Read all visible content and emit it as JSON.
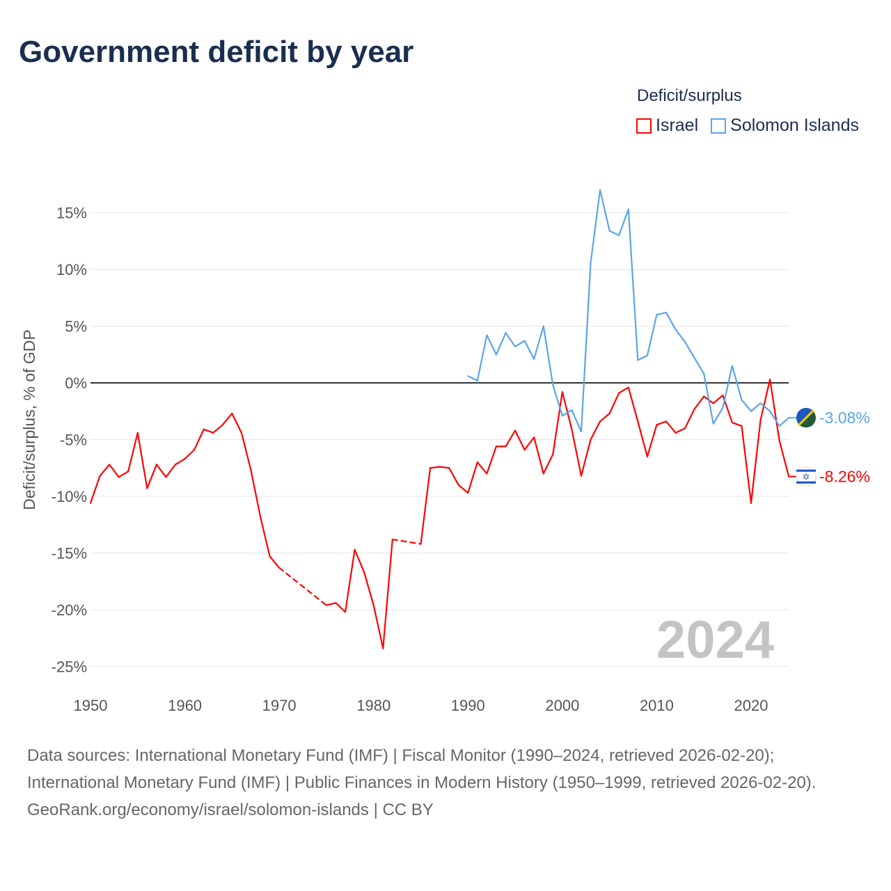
{
  "title": "Government deficit by year",
  "legend": {
    "title": "Deficit/surplus",
    "items": [
      {
        "label": "Israel",
        "color": "#ff0000"
      },
      {
        "label": "Solomon Islands",
        "color": "#5aa5e8"
      }
    ]
  },
  "year_watermark": "2024",
  "footer": {
    "sources": "Data sources: International Monetary Fund (IMF) | Fiscal Monitor (1990–2024, retrieved 2026-02-20); International Monetary Fund (IMF) | Public Finances in Modern History (1950–1999, retrieved 2026-02-20).",
    "credit": "GeoRank.org/economy/israel/solomon-islands | CC BY"
  },
  "chart_data": {
    "type": "line",
    "title": "Government deficit by year",
    "xlabel": "",
    "ylabel": "Deficit/surplus, % of GDP",
    "xlim": [
      1950,
      2024
    ],
    "ylim": [
      -25,
      17
    ],
    "x_ticks": [
      1950,
      1960,
      1970,
      1980,
      1990,
      2000,
      2010,
      2020
    ],
    "y_ticks": [
      15,
      10,
      5,
      0,
      -5,
      -10,
      -15,
      -20,
      -25
    ],
    "y_tick_labels": [
      "15%",
      "10%",
      "5%",
      "0%",
      "-5%",
      "-10%",
      "-15%",
      "-20%",
      "-25%"
    ],
    "grid": true,
    "legend_position": "top-right",
    "series": [
      {
        "name": "Israel",
        "color": "#ff0000",
        "end_label": "-8.26%",
        "x": [
          1950,
          1951,
          1952,
          1953,
          1954,
          1955,
          1956,
          1957,
          1958,
          1959,
          1960,
          1961,
          1962,
          1963,
          1964,
          1965,
          1966,
          1967,
          1968,
          1969,
          1970,
          1975,
          1976,
          1977,
          1978,
          1979,
          1980,
          1981,
          1982,
          1985,
          1986,
          1987,
          1988,
          1989,
          1990,
          1991,
          1992,
          1993,
          1994,
          1995,
          1996,
          1997,
          1998,
          1999,
          2000,
          2001,
          2002,
          2003,
          2004,
          2005,
          2006,
          2007,
          2008,
          2009,
          2010,
          2011,
          2012,
          2013,
          2014,
          2015,
          2016,
          2017,
          2018,
          2019,
          2020,
          2021,
          2022,
          2023,
          2024
        ],
        "y": [
          -10.6,
          -8.2,
          -7.2,
          -8.3,
          -7.8,
          -4.4,
          -9.3,
          -7.2,
          -8.3,
          -7.2,
          -6.7,
          -5.9,
          -4.1,
          -4.4,
          -3.7,
          -2.7,
          -4.4,
          -7.7,
          -11.8,
          -15.3,
          -16.3,
          -19.6,
          -19.4,
          -20.2,
          -14.7,
          -16.7,
          -19.6,
          -23.4,
          -13.8,
          -14.2,
          -7.5,
          -7.4,
          -7.5,
          -9.0,
          -9.7,
          -7.0,
          -8.0,
          -5.6,
          -5.6,
          -4.2,
          -5.9,
          -4.8,
          -8.0,
          -6.3,
          -0.8,
          -4.1,
          -8.2,
          -5.0,
          -3.4,
          -2.7,
          -0.9,
          -0.4,
          -3.4,
          -6.5,
          -3.7,
          -3.4,
          -4.4,
          -4.0,
          -2.3,
          -1.2,
          -1.8,
          -1.1,
          -3.5,
          -3.8,
          -10.6,
          -3.3,
          0.3,
          -5.1,
          -8.26
        ]
      },
      {
        "name": "Solomon Islands",
        "color": "#5aa5e8",
        "end_label": "-3.08%",
        "x": [
          1990,
          1991,
          1992,
          1993,
          1994,
          1995,
          1996,
          1997,
          1998,
          1999,
          2000,
          2001,
          2002,
          2003,
          2004,
          2005,
          2006,
          2007,
          2008,
          2009,
          2010,
          2011,
          2012,
          2013,
          2014,
          2015,
          2016,
          2017,
          2018,
          2019,
          2020,
          2021,
          2022,
          2023,
          2024
        ],
        "y": [
          0.6,
          0.2,
          4.2,
          2.5,
          4.4,
          3.2,
          3.7,
          2.1,
          5.0,
          -0.2,
          -2.9,
          -2.4,
          -4.3,
          10.6,
          17.0,
          13.4,
          13.0,
          15.3,
          2.0,
          2.4,
          6.0,
          6.2,
          4.7,
          3.6,
          2.2,
          0.8,
          -3.6,
          -2.2,
          1.5,
          -1.5,
          -2.5,
          -1.8,
          -2.5,
          -3.8,
          -3.08
        ]
      }
    ]
  }
}
